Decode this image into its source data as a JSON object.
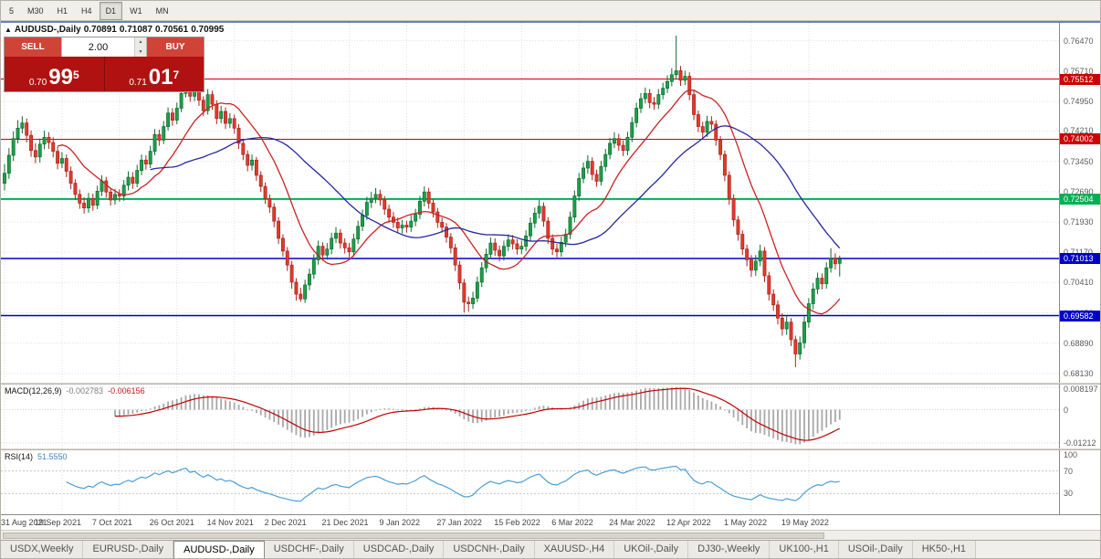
{
  "toolbar": {
    "timeframes": [
      "5",
      "M30",
      "H1",
      "H4",
      "D1",
      "W1",
      "MN"
    ],
    "active_index": 4
  },
  "chart": {
    "symbol": "AUDUSD-,Daily",
    "o": "0.70891",
    "h": "0.71087",
    "l": "0.70561",
    "c": "0.70995"
  },
  "trade": {
    "sell_label": "SELL",
    "buy_label": "BUY",
    "volume": "2.00",
    "bid_small": "0.70",
    "bid_big": "99",
    "bid_sup": "5",
    "ask_small": "0.71",
    "ask_big": "01",
    "ask_sup": "7"
  },
  "chart_data": {
    "type": "candlestick",
    "title": "AUDUSD-,Daily",
    "y_axis": {
      "min": 0.679,
      "max": 0.7692,
      "ticks": [
        "0.76470",
        "0.75710",
        "0.74950",
        "0.74210",
        "0.73450",
        "0.72690",
        "0.71930",
        "0.71170",
        "0.70410",
        "0.69650",
        "0.68890",
        "0.68130"
      ]
    },
    "x_labels": [
      {
        "i": 0,
        "t": "31 Aug 2021"
      },
      {
        "i": 13,
        "t": "19 Sep 2021"
      },
      {
        "i": 26,
        "t": "7 Oct 2021"
      },
      {
        "i": 39,
        "t": "26 Oct 2021"
      },
      {
        "i": 52,
        "t": "14 Nov 2021"
      },
      {
        "i": 65,
        "t": "2 Dec 2021"
      },
      {
        "i": 78,
        "t": "21 Dec 2021"
      },
      {
        "i": 91,
        "t": "9 Jan 2022"
      },
      {
        "i": 104,
        "t": "27 Jan 2022"
      },
      {
        "i": 117,
        "t": "15 Feb 2022"
      },
      {
        "i": 130,
        "t": "6 Mar 2022"
      },
      {
        "i": 143,
        "t": "24 Mar 2022"
      },
      {
        "i": 156,
        "t": "12 Apr 2022"
      },
      {
        "i": 169,
        "t": "1 May 2022"
      },
      {
        "i": 182,
        "t": "19 May 2022"
      }
    ],
    "hlines": [
      {
        "price": 0.75512,
        "label": "0.75512",
        "color": "#cc0000",
        "width": 1
      },
      {
        "price": 0.74002,
        "label": "0.74002",
        "color": "#cc0000",
        "width": 1
      },
      {
        "price": 0.72504,
        "label": "0.72504",
        "color": "#00b050",
        "width": 2
      },
      {
        "price": 0.71013,
        "label": "0.71013",
        "color": "#0000c8",
        "width": 1.5
      },
      {
        "price": 0.69582,
        "label": "0.69582",
        "color": "#0000c8",
        "width": 1.5
      }
    ],
    "moving_averages": [
      {
        "period": 13,
        "color": "#cc2222"
      },
      {
        "period": 34,
        "color": "#2626a0"
      }
    ],
    "colors": {
      "up": "#1ca04a",
      "up_border": "#0e6b30",
      "down": "#e23a2e",
      "down_border": "#a8241c",
      "grid": "#e0e0e0",
      "macd_hist": "#a8a8a8",
      "macd_signal": "#c00000",
      "rsi_line": "#4a9fd8"
    },
    "macd": {
      "label": "MACD(12,26,9)",
      "value1": "-0.002783",
      "value2": "-0.006156",
      "params": [
        12,
        26,
        9
      ],
      "axis": [
        "0.008197",
        "0",
        "-0.01212"
      ]
    },
    "rsi": {
      "label": "RSI(14)",
      "value": "51.5550",
      "period": 14,
      "axis": [
        100,
        70,
        30
      ],
      "levels": [
        70,
        30
      ]
    },
    "candles": [
      [
        0.729,
        0.7338,
        0.7272,
        0.7315
      ],
      [
        0.7315,
        0.7378,
        0.7301,
        0.736
      ],
      [
        0.736,
        0.742,
        0.7346,
        0.7402
      ],
      [
        0.7402,
        0.7448,
        0.739,
        0.7428
      ],
      [
        0.7428,
        0.7458,
        0.7415,
        0.7441
      ],
      [
        0.7441,
        0.7452,
        0.7392,
        0.741
      ],
      [
        0.741,
        0.7422,
        0.7356,
        0.7372
      ],
      [
        0.7372,
        0.739,
        0.734,
        0.7356
      ],
      [
        0.7356,
        0.7402,
        0.7342,
        0.7388
      ],
      [
        0.7388,
        0.7422,
        0.7375,
        0.7405
      ],
      [
        0.7405,
        0.7418,
        0.7376,
        0.7392
      ],
      [
        0.7392,
        0.7405,
        0.7355,
        0.737
      ],
      [
        0.737,
        0.7382,
        0.7325,
        0.734
      ],
      [
        0.734,
        0.7368,
        0.7328,
        0.7352
      ],
      [
        0.7352,
        0.7362,
        0.7305,
        0.732
      ],
      [
        0.732,
        0.7332,
        0.7275,
        0.729
      ],
      [
        0.729,
        0.73,
        0.7248,
        0.7262
      ],
      [
        0.7262,
        0.7274,
        0.7226,
        0.724
      ],
      [
        0.724,
        0.7255,
        0.7214,
        0.7228
      ],
      [
        0.7228,
        0.7266,
        0.7216,
        0.7252
      ],
      [
        0.7252,
        0.7264,
        0.7221,
        0.7235
      ],
      [
        0.7235,
        0.7284,
        0.7225,
        0.727
      ],
      [
        0.727,
        0.731,
        0.7258,
        0.7296
      ],
      [
        0.7296,
        0.7306,
        0.7254,
        0.7268
      ],
      [
        0.7268,
        0.7278,
        0.7234,
        0.7248
      ],
      [
        0.7248,
        0.7276,
        0.7236,
        0.7262
      ],
      [
        0.7262,
        0.7275,
        0.7244,
        0.7258
      ],
      [
        0.7258,
        0.7298,
        0.7246,
        0.7285
      ],
      [
        0.7285,
        0.732,
        0.7272,
        0.7305
      ],
      [
        0.7305,
        0.7318,
        0.7276,
        0.729
      ],
      [
        0.729,
        0.7336,
        0.728,
        0.7322
      ],
      [
        0.7322,
        0.7362,
        0.731,
        0.7348
      ],
      [
        0.7348,
        0.736,
        0.7324,
        0.7338
      ],
      [
        0.7338,
        0.7384,
        0.7328,
        0.737
      ],
      [
        0.737,
        0.7426,
        0.736,
        0.7412
      ],
      [
        0.7412,
        0.7424,
        0.7384,
        0.7398
      ],
      [
        0.7398,
        0.7446,
        0.7388,
        0.7432
      ],
      [
        0.7432,
        0.748,
        0.7422,
        0.7466
      ],
      [
        0.7466,
        0.7478,
        0.7434,
        0.7448
      ],
      [
        0.7448,
        0.7492,
        0.7438,
        0.7478
      ],
      [
        0.7478,
        0.753,
        0.7468,
        0.7515
      ],
      [
        0.7515,
        0.7555,
        0.7505,
        0.7546
      ],
      [
        0.7546,
        0.7552,
        0.7494,
        0.7508
      ],
      [
        0.7508,
        0.7546,
        0.7496,
        0.7532
      ],
      [
        0.7532,
        0.7542,
        0.7484,
        0.7498
      ],
      [
        0.7498,
        0.7508,
        0.7458,
        0.7472
      ],
      [
        0.7472,
        0.7526,
        0.7462,
        0.7512
      ],
      [
        0.7512,
        0.7522,
        0.7474,
        0.7488
      ],
      [
        0.7488,
        0.7498,
        0.7438,
        0.7452
      ],
      [
        0.7452,
        0.7484,
        0.744,
        0.747
      ],
      [
        0.747,
        0.748,
        0.7426,
        0.744
      ],
      [
        0.744,
        0.7466,
        0.7428,
        0.7452
      ],
      [
        0.7452,
        0.7462,
        0.7414,
        0.7428
      ],
      [
        0.7428,
        0.7438,
        0.7376,
        0.739
      ],
      [
        0.739,
        0.74,
        0.7348,
        0.7362
      ],
      [
        0.7362,
        0.7372,
        0.732,
        0.7335
      ],
      [
        0.7335,
        0.7362,
        0.7322,
        0.7348
      ],
      [
        0.7348,
        0.7356,
        0.7296,
        0.731
      ],
      [
        0.731,
        0.732,
        0.7268,
        0.7282
      ],
      [
        0.7282,
        0.7292,
        0.7238,
        0.7252
      ],
      [
        0.7252,
        0.7262,
        0.7216,
        0.723
      ],
      [
        0.723,
        0.724,
        0.718,
        0.7195
      ],
      [
        0.7195,
        0.7205,
        0.7138,
        0.7152
      ],
      [
        0.7152,
        0.7162,
        0.7106,
        0.712
      ],
      [
        0.712,
        0.713,
        0.707,
        0.7085
      ],
      [
        0.7085,
        0.7095,
        0.7026,
        0.7042
      ],
      [
        0.7042,
        0.7052,
        0.6996,
        0.7012
      ],
      [
        0.7012,
        0.7028,
        0.6993,
        0.7
      ],
      [
        0.7,
        0.7048,
        0.699,
        0.7035
      ],
      [
        0.7035,
        0.7076,
        0.7022,
        0.7062
      ],
      [
        0.7062,
        0.7112,
        0.705,
        0.7098
      ],
      [
        0.7098,
        0.7146,
        0.7086,
        0.7132
      ],
      [
        0.7132,
        0.7142,
        0.7096,
        0.711
      ],
      [
        0.711,
        0.714,
        0.7098,
        0.7125
      ],
      [
        0.7125,
        0.7166,
        0.7112,
        0.7152
      ],
      [
        0.7152,
        0.718,
        0.714,
        0.7165
      ],
      [
        0.7165,
        0.7175,
        0.7126,
        0.714
      ],
      [
        0.714,
        0.7152,
        0.7114,
        0.7128
      ],
      [
        0.7128,
        0.714,
        0.7104,
        0.7118
      ],
      [
        0.7118,
        0.7164,
        0.7106,
        0.715
      ],
      [
        0.715,
        0.7196,
        0.7138,
        0.7182
      ],
      [
        0.7182,
        0.7224,
        0.717,
        0.721
      ],
      [
        0.721,
        0.7256,
        0.7198,
        0.7242
      ],
      [
        0.7242,
        0.7268,
        0.7228,
        0.7252
      ],
      [
        0.7252,
        0.7278,
        0.724,
        0.7262
      ],
      [
        0.7262,
        0.7274,
        0.7234,
        0.7248
      ],
      [
        0.7248,
        0.7258,
        0.7211,
        0.7225
      ],
      [
        0.7225,
        0.7236,
        0.7191,
        0.7205
      ],
      [
        0.7205,
        0.7218,
        0.7178,
        0.7192
      ],
      [
        0.7192,
        0.7204,
        0.7164,
        0.7178
      ],
      [
        0.7178,
        0.7198,
        0.7164,
        0.7185
      ],
      [
        0.7185,
        0.7196,
        0.7166,
        0.718
      ],
      [
        0.718,
        0.721,
        0.7168,
        0.7195
      ],
      [
        0.7195,
        0.7226,
        0.7182,
        0.7212
      ],
      [
        0.7212,
        0.7258,
        0.72,
        0.7245
      ],
      [
        0.7245,
        0.7282,
        0.7232,
        0.7268
      ],
      [
        0.7268,
        0.7278,
        0.7226,
        0.724
      ],
      [
        0.724,
        0.725,
        0.7204,
        0.7218
      ],
      [
        0.7218,
        0.7228,
        0.7178,
        0.7192
      ],
      [
        0.7192,
        0.7204,
        0.7166,
        0.718
      ],
      [
        0.718,
        0.719,
        0.7141,
        0.7155
      ],
      [
        0.7155,
        0.7165,
        0.7114,
        0.7128
      ],
      [
        0.7128,
        0.7138,
        0.707,
        0.7085
      ],
      [
        0.7085,
        0.7095,
        0.7024,
        0.704
      ],
      [
        0.704,
        0.705,
        0.6966,
        0.6992
      ],
      [
        0.6992,
        0.7006,
        0.6968,
        0.6988
      ],
      [
        0.6988,
        0.7018,
        0.6975,
        0.7002
      ],
      [
        0.7002,
        0.7056,
        0.6992,
        0.7042
      ],
      [
        0.7042,
        0.7092,
        0.703,
        0.7078
      ],
      [
        0.7078,
        0.7126,
        0.7066,
        0.7112
      ],
      [
        0.7112,
        0.7154,
        0.71,
        0.714
      ],
      [
        0.714,
        0.7152,
        0.7108,
        0.7122
      ],
      [
        0.7122,
        0.7134,
        0.7094,
        0.7108
      ],
      [
        0.7108,
        0.7146,
        0.7096,
        0.7132
      ],
      [
        0.7132,
        0.7162,
        0.712,
        0.7148
      ],
      [
        0.7148,
        0.716,
        0.7124,
        0.7138
      ],
      [
        0.7138,
        0.715,
        0.7111,
        0.7125
      ],
      [
        0.7125,
        0.7146,
        0.7112,
        0.7132
      ],
      [
        0.7132,
        0.7172,
        0.712,
        0.7158
      ],
      [
        0.7158,
        0.7204,
        0.7146,
        0.719
      ],
      [
        0.719,
        0.7229,
        0.7178,
        0.7215
      ],
      [
        0.7215,
        0.7248,
        0.7202,
        0.7232
      ],
      [
        0.7232,
        0.7242,
        0.7181,
        0.7195
      ],
      [
        0.7195,
        0.7205,
        0.7138,
        0.7152
      ],
      [
        0.7152,
        0.7162,
        0.711,
        0.7125
      ],
      [
        0.7125,
        0.7138,
        0.7104,
        0.7118
      ],
      [
        0.7118,
        0.7156,
        0.7106,
        0.7142
      ],
      [
        0.7142,
        0.7176,
        0.713,
        0.7162
      ],
      [
        0.7162,
        0.7219,
        0.715,
        0.7205
      ],
      [
        0.7205,
        0.7272,
        0.7192,
        0.7258
      ],
      [
        0.7258,
        0.7316,
        0.7246,
        0.7302
      ],
      [
        0.7302,
        0.7342,
        0.729,
        0.7328
      ],
      [
        0.7328,
        0.736,
        0.7314,
        0.7345
      ],
      [
        0.7345,
        0.7355,
        0.7298,
        0.7312
      ],
      [
        0.7312,
        0.7324,
        0.7281,
        0.7295
      ],
      [
        0.7295,
        0.7346,
        0.7284,
        0.7332
      ],
      [
        0.7332,
        0.7376,
        0.732,
        0.7362
      ],
      [
        0.7362,
        0.7404,
        0.735,
        0.739
      ],
      [
        0.739,
        0.7418,
        0.7378,
        0.7402
      ],
      [
        0.7402,
        0.7414,
        0.7371,
        0.7385
      ],
      [
        0.7385,
        0.7398,
        0.7358,
        0.7372
      ],
      [
        0.7372,
        0.7419,
        0.736,
        0.7405
      ],
      [
        0.7405,
        0.7456,
        0.7393,
        0.7442
      ],
      [
        0.7442,
        0.7492,
        0.743,
        0.7478
      ],
      [
        0.7478,
        0.7516,
        0.7466,
        0.7502
      ],
      [
        0.7502,
        0.753,
        0.749,
        0.7515
      ],
      [
        0.7515,
        0.7526,
        0.7478,
        0.7492
      ],
      [
        0.7492,
        0.7506,
        0.7474,
        0.7488
      ],
      [
        0.7488,
        0.7526,
        0.7476,
        0.7512
      ],
      [
        0.7512,
        0.7542,
        0.75,
        0.7528
      ],
      [
        0.7528,
        0.756,
        0.7516,
        0.7545
      ],
      [
        0.7545,
        0.7578,
        0.7533,
        0.7562
      ],
      [
        0.7562,
        0.766,
        0.755,
        0.7572
      ],
      [
        0.7572,
        0.7584,
        0.7534,
        0.7548
      ],
      [
        0.7548,
        0.7572,
        0.7536,
        0.7558
      ],
      [
        0.7558,
        0.7568,
        0.7498,
        0.7512
      ],
      [
        0.7512,
        0.7522,
        0.7448,
        0.7462
      ],
      [
        0.7462,
        0.7472,
        0.7418,
        0.7432
      ],
      [
        0.7432,
        0.7444,
        0.7404,
        0.7418
      ],
      [
        0.7418,
        0.7459,
        0.7406,
        0.7445
      ],
      [
        0.7445,
        0.7458,
        0.7424,
        0.7438
      ],
      [
        0.7438,
        0.7448,
        0.7384,
        0.7398
      ],
      [
        0.7398,
        0.7408,
        0.7348,
        0.7362
      ],
      [
        0.7362,
        0.7372,
        0.7295,
        0.731
      ],
      [
        0.731,
        0.732,
        0.7236,
        0.7252
      ],
      [
        0.7252,
        0.7262,
        0.7182,
        0.7198
      ],
      [
        0.7198,
        0.7208,
        0.7146,
        0.7162
      ],
      [
        0.7162,
        0.7172,
        0.711,
        0.7125
      ],
      [
        0.7125,
        0.7136,
        0.7082,
        0.7098
      ],
      [
        0.7098,
        0.711,
        0.7055,
        0.7072
      ],
      [
        0.7072,
        0.711,
        0.7058,
        0.7095
      ],
      [
        0.7095,
        0.7136,
        0.7082,
        0.712
      ],
      [
        0.712,
        0.713,
        0.7042,
        0.7058
      ],
      [
        0.7058,
        0.7068,
        0.6996,
        0.7012
      ],
      [
        0.7012,
        0.7024,
        0.697,
        0.6985
      ],
      [
        0.6985,
        0.6996,
        0.6936,
        0.6952
      ],
      [
        0.6952,
        0.6964,
        0.6908,
        0.6925
      ],
      [
        0.6925,
        0.6958,
        0.691,
        0.6942
      ],
      [
        0.6942,
        0.6952,
        0.6882,
        0.6898
      ],
      [
        0.6898,
        0.6908,
        0.6829,
        0.6862
      ],
      [
        0.6862,
        0.6906,
        0.6848,
        0.689
      ],
      [
        0.689,
        0.6956,
        0.6876,
        0.6942
      ],
      [
        0.6942,
        0.7002,
        0.6928,
        0.6988
      ],
      [
        0.6988,
        0.704,
        0.6974,
        0.7025
      ],
      [
        0.7025,
        0.7066,
        0.7012,
        0.7052
      ],
      [
        0.7052,
        0.7064,
        0.7024,
        0.7038
      ],
      [
        0.7038,
        0.7092,
        0.7026,
        0.7078
      ],
      [
        0.7078,
        0.7127,
        0.7066,
        0.7102
      ],
      [
        0.7102,
        0.7114,
        0.7074,
        0.7088
      ],
      [
        0.70891,
        0.71087,
        0.70561,
        0.70995
      ]
    ]
  },
  "bottom_tabs": {
    "items": [
      "USDX,Weekly",
      "EURUSD-,Daily",
      "AUDUSD-,Daily",
      "USDCHF-,Daily",
      "USDCAD-,Daily",
      "USDCNH-,Daily",
      "XAUUSD-,H4",
      "UKOil-,Daily",
      "DJ30-,Weekly",
      "UK100-,H1",
      "USOil-,Daily",
      "HK50-,H1"
    ],
    "active_index": 2
  }
}
